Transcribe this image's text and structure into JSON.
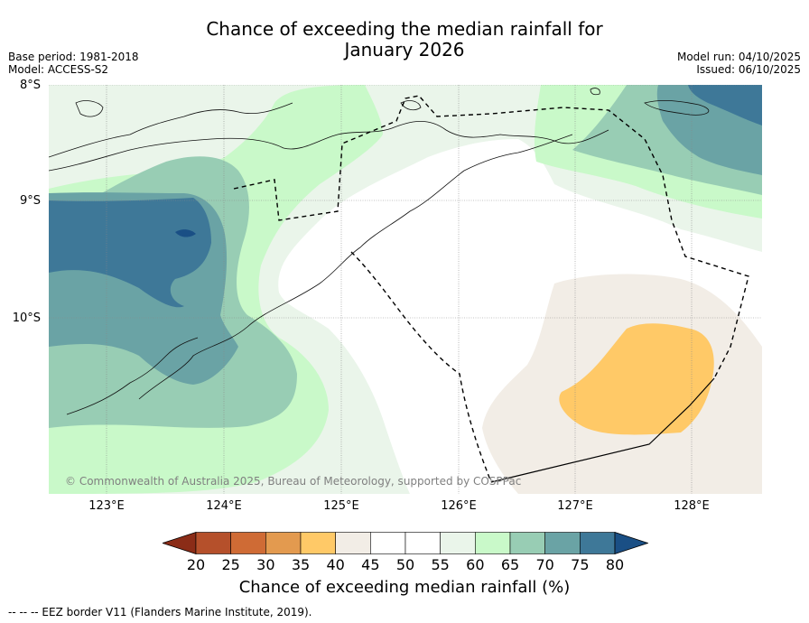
{
  "title": {
    "line1": "Chance of exceeding the median rainfall for",
    "line2": "January 2026"
  },
  "meta": {
    "base_period": "Base period: 1981-2018",
    "model": "Model: ACCESS-S2",
    "model_run": "Model run: 04/10/2025",
    "issued": "Issued: 06/10/2025"
  },
  "axes": {
    "lat_labels": [
      "8°S",
      "9°S",
      "10°S"
    ],
    "lon_labels": [
      "123°E",
      "124°E",
      "125°E",
      "126°E",
      "127°E",
      "128°E"
    ]
  },
  "colorbar": {
    "ticks": [
      "20",
      "25",
      "30",
      "35",
      "40",
      "45",
      "50",
      "55",
      "60",
      "65",
      "70",
      "75",
      "80"
    ],
    "label": "Chance of exceeding median rainfall (%)",
    "colors": [
      "#8b2c17",
      "#b5502b",
      "#cf6b35",
      "#e39a4f",
      "#ffc967",
      "#f2ede6",
      "#ffffff",
      "#ffffff",
      "#eaf5ea",
      "#c9f9c9",
      "#98cdb4",
      "#6aa3a5",
      "#3e7898",
      "#1a4f85"
    ]
  },
  "copyright": "© Commonwealth of Australia 2025, Bureau of Meteorology, supported by COSPPac",
  "footnote": "--  --  -- EEZ border V11 (Flanders Marine Institute, 2019)."
}
